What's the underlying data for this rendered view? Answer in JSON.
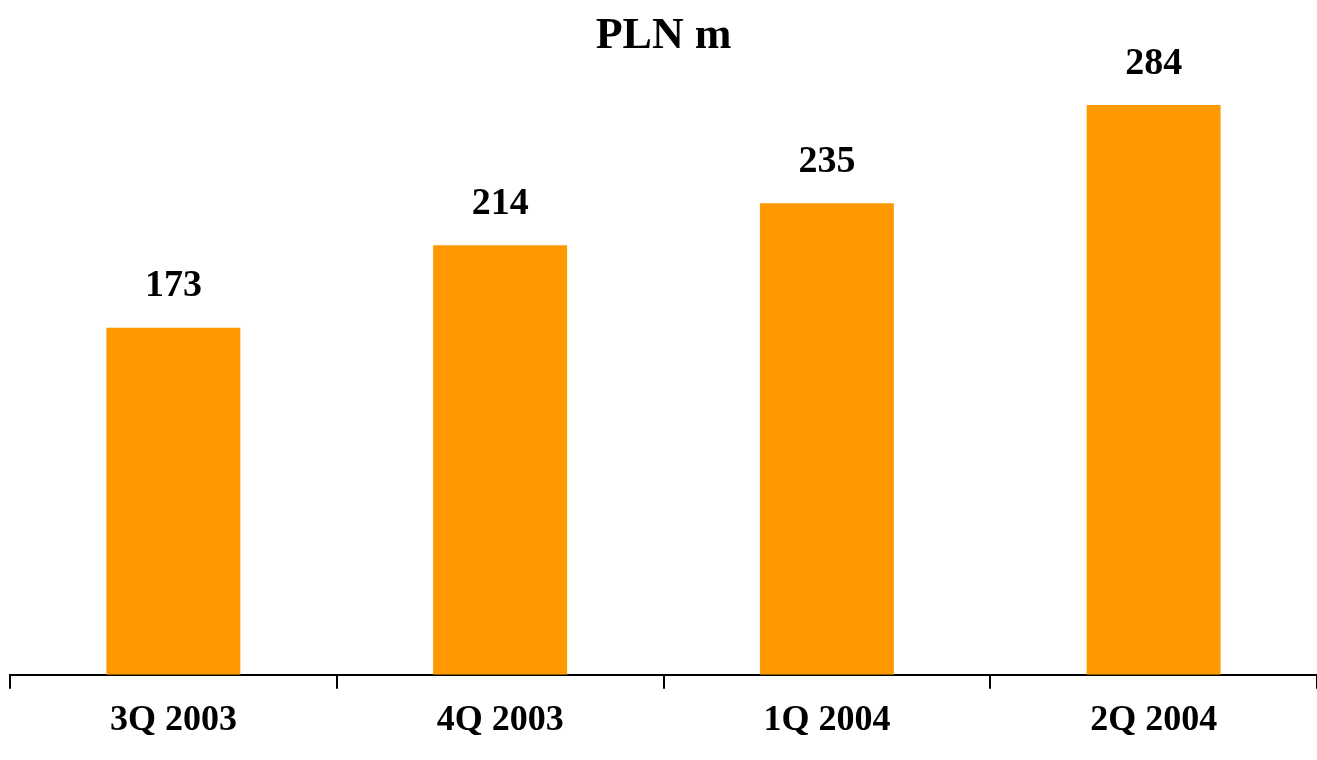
{
  "chart_data": {
    "type": "bar",
    "title": "PLN m",
    "categories": [
      "3Q 2003",
      "4Q 2003",
      "1Q 2004",
      "2Q 2004"
    ],
    "values": [
      173,
      214,
      235,
      284
    ],
    "color": "#ff9900",
    "data_labels": true,
    "grid": false,
    "legend": false
  }
}
